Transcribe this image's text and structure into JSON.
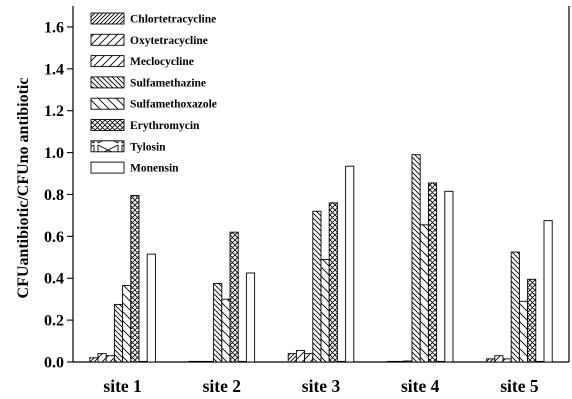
{
  "chart_data": {
    "type": "bar",
    "ylabel": "CFUantibiotic/CFUno antibiotic",
    "xlabel": "",
    "ylim": [
      0,
      1.7
    ],
    "yticks": [
      "0.0",
      "0.2",
      "0.4",
      "0.6",
      "0.8",
      "1.0",
      "1.2",
      "1.4",
      "1.6"
    ],
    "ytick_values": [
      0,
      0.2,
      0.4,
      0.6,
      0.8,
      1.0,
      1.2,
      1.4,
      1.6
    ],
    "grid": false,
    "legend_position": "top-left",
    "categories": [
      "site 1",
      "site 2",
      "site 3",
      "site 4",
      "site 5"
    ],
    "series": [
      {
        "name": "Chlortetracycline",
        "pattern": "diag-fwd-dense",
        "values": [
          0.02,
          0.003,
          0.04,
          0.0,
          0.015
        ]
      },
      {
        "name": "Oxytetracycline",
        "pattern": "diag-fwd",
        "values": [
          0.04,
          0.002,
          0.055,
          0.0,
          0.03
        ]
      },
      {
        "name": "Meclocycline",
        "pattern": "diag-fwd",
        "values": [
          0.03,
          0.002,
          0.04,
          0.005,
          0.015
        ]
      },
      {
        "name": "Sulfamethazine",
        "pattern": "diag-back-dense",
        "values": [
          0.275,
          0.375,
          0.72,
          0.99,
          0.525
        ]
      },
      {
        "name": "Sulfamethoxazole",
        "pattern": "diag-back",
        "values": [
          0.365,
          0.3,
          0.49,
          0.655,
          0.29
        ]
      },
      {
        "name": "Erythromycin",
        "pattern": "crosshatch",
        "values": [
          0.795,
          0.62,
          0.76,
          0.855,
          0.395
        ]
      },
      {
        "name": "Tylosin",
        "pattern": "bowtie",
        "values": [
          0.002,
          0.002,
          0.002,
          0.002,
          0.002
        ]
      },
      {
        "name": "Monensin",
        "pattern": "none",
        "values": [
          0.515,
          0.425,
          0.935,
          0.815,
          0.675
        ]
      }
    ]
  }
}
